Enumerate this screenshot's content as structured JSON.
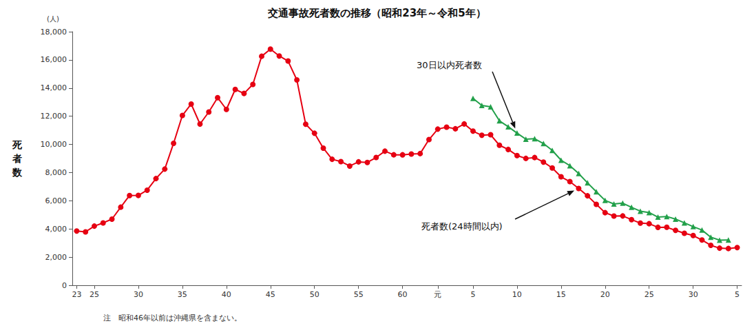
{
  "chart_data": {
    "type": "line",
    "title": "交通事故死者数の推移（昭和23年～令和5年）",
    "ylabel": "死者数",
    "yunit": "(人)",
    "note": "注　昭和46年以前は沖縄県を含まない。",
    "categories": [
      "23",
      null,
      "25",
      null,
      null,
      null,
      null,
      "30",
      null,
      null,
      null,
      null,
      "35",
      null,
      null,
      null,
      null,
      "40",
      null,
      null,
      null,
      null,
      "45",
      null,
      null,
      null,
      null,
      "50",
      null,
      null,
      null,
      null,
      "55",
      null,
      null,
      null,
      null,
      "60",
      null,
      null,
      null,
      "元",
      null,
      null,
      null,
      "5",
      null,
      null,
      null,
      null,
      "10",
      null,
      null,
      null,
      null,
      "15",
      null,
      null,
      null,
      null,
      "20",
      null,
      null,
      null,
      null,
      "25",
      null,
      null,
      null,
      null,
      "30",
      null,
      null,
      null,
      null,
      "5"
    ],
    "series": [
      {
        "name": "死者数(24時間以内)",
        "color": "#e60012",
        "marker": "circle",
        "values": [
          3848,
          3790,
          4202,
          4429,
          4696,
          5544,
          6374,
          6379,
          6751,
          7575,
          8248,
          10079,
          12055,
          12865,
          11445,
          12301,
          13318,
          12484,
          13904,
          13618,
          14256,
          16257,
          16765,
          16278,
          15918,
          14574,
          11432,
          10792,
          9734,
          8945,
          8783,
          8466,
          8760,
          8719,
          9073,
          9520,
          9262,
          9261,
          9317,
          9347,
          10344,
          11086,
          11227,
          11109,
          11452,
          10942,
          10649,
          10684,
          9942,
          9640,
          9211,
          9006,
          9066,
          8747,
          8326,
          7702,
          7358,
          6871,
          6352,
          5744,
          5155,
          4914,
          4922,
          4663,
          4411,
          4373,
          4113,
          4117,
          3904,
          3694,
          3532,
          3215,
          2839,
          2636,
          2610,
          2678
        ]
      },
      {
        "name": "30日以内死者数",
        "color": "#22a04a",
        "marker": "triangle",
        "values": [
          null,
          null,
          null,
          null,
          null,
          null,
          null,
          null,
          null,
          null,
          null,
          null,
          null,
          null,
          null,
          null,
          null,
          null,
          null,
          null,
          null,
          null,
          null,
          null,
          null,
          null,
          null,
          null,
          null,
          null,
          null,
          null,
          null,
          null,
          null,
          null,
          null,
          null,
          null,
          null,
          null,
          null,
          null,
          null,
          null,
          13269,
          12768,
          12670,
          11674,
          11254,
          10805,
          10372,
          10403,
          10060,
          9575,
          8877,
          8492,
          7931,
          7272,
          6639,
          6023,
          5772,
          5828,
          5535,
          5261,
          5165,
          4838,
          4885,
          4698,
          4431,
          4166,
          3920,
          3416,
          3205,
          3216,
          null
        ]
      }
    ],
    "ylim": [
      0,
      18000
    ],
    "yticks": [
      0,
      {
        "value": 2000,
        "label": "2,000"
      },
      {
        "value": 4000,
        "label": "4,000"
      },
      {
        "value": 6000,
        "label": "6,000"
      },
      {
        "value": 8000,
        "label": "8,000"
      },
      {
        "value": 10000,
        "label": "10,000"
      },
      {
        "value": 12000,
        "label": "12,000"
      },
      {
        "value": 14000,
        "label": "14,000"
      },
      {
        "value": 16000,
        "label": "16,000"
      },
      {
        "value": 18000,
        "label": "18,000"
      }
    ],
    "grid": false
  }
}
